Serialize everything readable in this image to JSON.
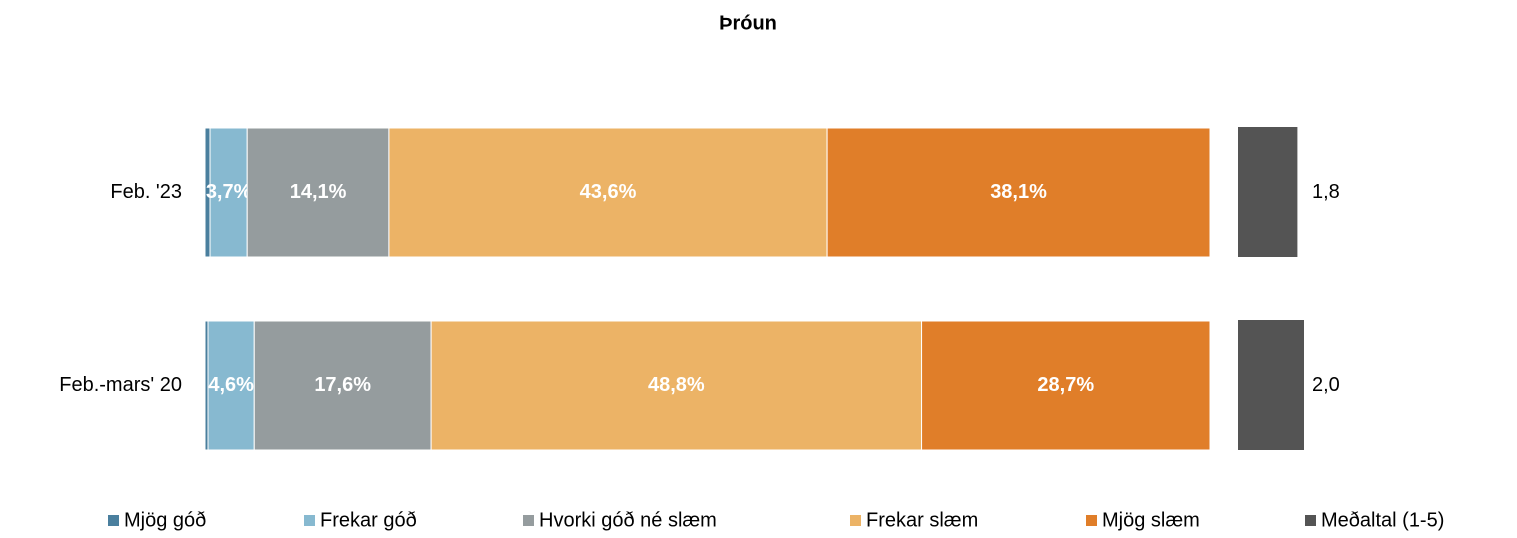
{
  "chart_data": {
    "type": "bar",
    "orientation": "horizontal",
    "stacked": true,
    "title": "Þróun",
    "categories": [
      "Feb. '23",
      "Feb.-mars' 20"
    ],
    "series": [
      {
        "name": "Mjög góð",
        "color": "#4a7f9e",
        "values": [
          0.5,
          0.3
        ],
        "value_labels": [
          null,
          null
        ]
      },
      {
        "name": "Frekar góð",
        "color": "#87b9d0",
        "values": [
          3.7,
          4.6
        ],
        "value_labels": [
          "3,7%",
          "4,6%"
        ]
      },
      {
        "name": "Hvorki góð né slæm",
        "color": "#959c9e",
        "values": [
          14.1,
          17.6
        ],
        "value_labels": [
          "14,1%",
          "17,6%"
        ]
      },
      {
        "name": "Frekar slæm",
        "color": "#ecb366",
        "values": [
          43.6,
          48.8
        ],
        "value_labels": [
          "43,6%",
          "48,8%"
        ]
      },
      {
        "name": "Mjög slæm",
        "color": "#e07e29",
        "values": [
          38.1,
          28.7
        ],
        "value_labels": [
          "38,1%",
          "28,7%"
        ]
      },
      {
        "name": "Meðaltal (1-5)",
        "color": "#545454",
        "values": [
          1.8,
          2.0
        ],
        "value_labels": [
          "1,8",
          "2,0"
        ],
        "axis": "x2"
      }
    ]
  }
}
